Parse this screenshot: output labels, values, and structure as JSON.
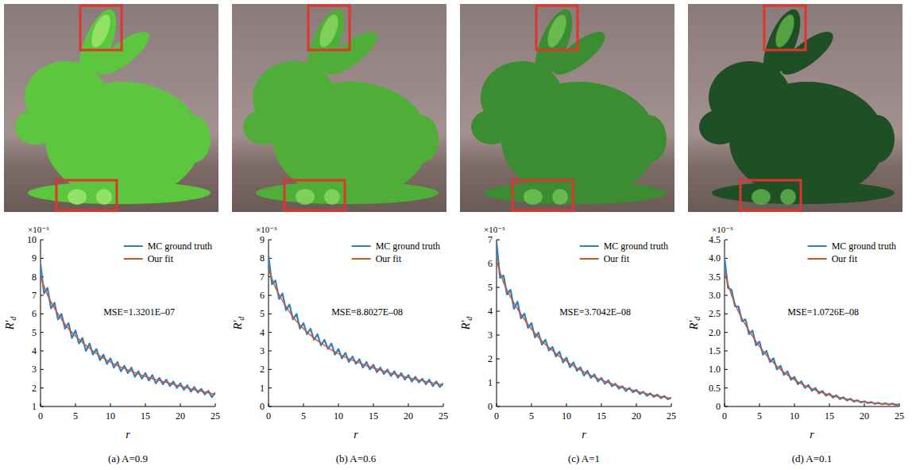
{
  "chart_data": [
    {
      "type": "line",
      "title": "(a) A=0.9",
      "xlabel": "r",
      "ylabel": "R′d",
      "y_scale_label": "×10⁻³",
      "annotations": [
        "MSE=1.3201E–07"
      ],
      "legend": "upper right",
      "xlim": [
        0,
        25
      ],
      "xticks": [
        0,
        5,
        10,
        15,
        20,
        25
      ],
      "ylim": [
        1,
        10
      ],
      "yticks": [
        1,
        2,
        3,
        4,
        5,
        6,
        7,
        8,
        9,
        10
      ],
      "series": [
        {
          "name": "MC ground truth",
          "color": "#2f7fc1",
          "x": [
            0,
            0.5,
            1,
            1.5,
            2,
            2.5,
            3,
            3.5,
            4,
            4.5,
            5,
            5.5,
            6,
            6.5,
            7,
            7.5,
            8,
            8.5,
            9,
            9.5,
            10,
            10.5,
            11,
            11.5,
            12,
            12.5,
            13,
            13.5,
            14,
            14.5,
            15,
            15.5,
            16,
            16.5,
            17,
            17.5,
            18,
            18.5,
            19,
            19.5,
            20,
            20.5,
            21,
            21.5,
            22,
            22.5,
            23,
            23.5,
            24,
            24.5,
            25
          ],
          "values": [
            8.7,
            7.1,
            7.4,
            6.3,
            6.6,
            5.7,
            6.0,
            5.2,
            5.5,
            4.7,
            5.1,
            4.4,
            4.7,
            4.0,
            4.4,
            3.8,
            4.1,
            3.5,
            3.8,
            3.3,
            3.6,
            3.1,
            3.4,
            2.9,
            3.2,
            2.8,
            3.1,
            2.6,
            2.9,
            2.5,
            2.8,
            2.4,
            2.7,
            2.25,
            2.55,
            2.2,
            2.45,
            2.1,
            2.35,
            2.0,
            2.25,
            1.9,
            2.15,
            1.8,
            2.05,
            1.75,
            1.95,
            1.65,
            1.85,
            1.5,
            1.75
          ]
        },
        {
          "name": "Our fit",
          "color": "#d9531e",
          "x": [
            0,
            1,
            2,
            3,
            4,
            5,
            6,
            7,
            8,
            9,
            10,
            11,
            12,
            13,
            14,
            15,
            16,
            17,
            18,
            19,
            20,
            21,
            22,
            23,
            24,
            25
          ],
          "values": [
            8.0,
            7.0,
            6.3,
            5.7,
            5.2,
            4.8,
            4.45,
            4.15,
            3.85,
            3.6,
            3.4,
            3.2,
            3.05,
            2.9,
            2.75,
            2.62,
            2.5,
            2.4,
            2.3,
            2.2,
            2.1,
            2.0,
            1.9,
            1.82,
            1.74,
            1.65
          ]
        }
      ]
    },
    {
      "type": "line",
      "title": "(b) A=0.6",
      "xlabel": "r",
      "ylabel": "R′d",
      "y_scale_label": "×10⁻³",
      "annotations": [
        "MSE=8.8027E–08"
      ],
      "legend": "upper right",
      "xlim": [
        0,
        25
      ],
      "xticks": [
        0,
        5,
        10,
        15,
        20,
        25
      ],
      "ylim": [
        0,
        9
      ],
      "yticks": [
        0,
        1,
        2,
        3,
        4,
        5,
        6,
        7,
        8,
        9
      ],
      "series": [
        {
          "name": "MC ground truth",
          "color": "#2f7fc1",
          "x": [
            0,
            0.5,
            1,
            1.5,
            2,
            2.5,
            3,
            3.5,
            4,
            4.5,
            5,
            5.5,
            6,
            6.5,
            7,
            7.5,
            8,
            8.5,
            9,
            9.5,
            10,
            10.5,
            11,
            11.5,
            12,
            12.5,
            13,
            13.5,
            14,
            14.5,
            15,
            15.5,
            16,
            16.5,
            17,
            17.5,
            18,
            18.5,
            19,
            19.5,
            20,
            20.5,
            21,
            21.5,
            22,
            22.5,
            23,
            23.5,
            24,
            24.5,
            25
          ],
          "values": [
            8.1,
            6.6,
            6.8,
            5.8,
            6.1,
            5.2,
            5.5,
            4.7,
            5.0,
            4.2,
            4.5,
            3.9,
            4.2,
            3.6,
            3.9,
            3.3,
            3.6,
            3.1,
            3.4,
            2.8,
            3.1,
            2.6,
            2.9,
            2.4,
            2.7,
            2.3,
            2.55,
            2.1,
            2.4,
            2.0,
            2.25,
            1.85,
            2.1,
            1.75,
            2.0,
            1.65,
            1.9,
            1.55,
            1.8,
            1.45,
            1.7,
            1.35,
            1.6,
            1.3,
            1.5,
            1.2,
            1.45,
            1.1,
            1.35,
            1.05,
            1.25
          ]
        },
        {
          "name": "Our fit",
          "color": "#d9531e",
          "x": [
            0,
            1,
            2,
            3,
            4,
            5,
            6,
            7,
            8,
            9,
            10,
            11,
            12,
            13,
            14,
            15,
            16,
            17,
            18,
            19,
            20,
            21,
            22,
            23,
            24,
            25
          ],
          "values": [
            7.4,
            6.4,
            5.7,
            5.1,
            4.6,
            4.2,
            3.85,
            3.55,
            3.3,
            3.05,
            2.85,
            2.65,
            2.5,
            2.35,
            2.2,
            2.08,
            1.96,
            1.85,
            1.75,
            1.65,
            1.56,
            1.47,
            1.39,
            1.31,
            1.24,
            1.17
          ]
        }
      ]
    },
    {
      "type": "line",
      "title": "(c) A=1",
      "xlabel": "r",
      "ylabel": "R′d",
      "y_scale_label": "×10⁻³",
      "annotations": [
        "MSE=3.7042E–08"
      ],
      "legend": "upper right",
      "xlim": [
        0,
        25
      ],
      "xticks": [
        0,
        5,
        10,
        15,
        20,
        25
      ],
      "ylim": [
        0,
        7
      ],
      "yticks": [
        0,
        1,
        2,
        3,
        4,
        5,
        6,
        7
      ],
      "series": [
        {
          "name": "MC ground truth",
          "color": "#2f7fc1",
          "x": [
            0,
            0.5,
            1,
            1.5,
            2,
            2.5,
            3,
            3.5,
            4,
            4.5,
            5,
            5.5,
            6,
            6.5,
            7,
            7.5,
            8,
            8.5,
            9,
            9.5,
            10,
            10.5,
            11,
            11.5,
            12,
            12.5,
            13,
            13.5,
            14,
            14.5,
            15,
            15.5,
            16,
            16.5,
            17,
            17.5,
            18,
            18.5,
            19,
            19.5,
            20,
            20.5,
            21,
            21.5,
            22,
            22.5,
            23,
            23.5,
            24,
            24.5,
            25
          ],
          "values": [
            6.9,
            5.4,
            5.5,
            4.7,
            4.9,
            4.1,
            4.4,
            3.7,
            3.9,
            3.3,
            3.5,
            2.9,
            3.1,
            2.6,
            2.8,
            2.35,
            2.5,
            2.1,
            2.3,
            1.85,
            2.05,
            1.65,
            1.85,
            1.5,
            1.65,
            1.3,
            1.5,
            1.2,
            1.35,
            1.05,
            1.2,
            0.95,
            1.1,
            0.85,
            0.95,
            0.75,
            0.85,
            0.65,
            0.78,
            0.6,
            0.7,
            0.52,
            0.62,
            0.45,
            0.55,
            0.4,
            0.5,
            0.35,
            0.44,
            0.3,
            0.37
          ]
        },
        {
          "name": "Our fit",
          "color": "#d9531e",
          "x": [
            0,
            1,
            2,
            3,
            4,
            5,
            6,
            7,
            8,
            9,
            10,
            11,
            12,
            13,
            14,
            15,
            16,
            17,
            18,
            19,
            20,
            21,
            22,
            23,
            24,
            25
          ],
          "values": [
            6.1,
            5.2,
            4.6,
            4.1,
            3.65,
            3.25,
            2.9,
            2.6,
            2.35,
            2.1,
            1.9,
            1.7,
            1.53,
            1.38,
            1.24,
            1.11,
            1.0,
            0.9,
            0.8,
            0.72,
            0.64,
            0.57,
            0.5,
            0.44,
            0.39,
            0.34
          ]
        }
      ]
    },
    {
      "type": "line",
      "title": "(d) A=0.1",
      "xlabel": "r",
      "ylabel": "R′d",
      "y_scale_label": "×10⁻³",
      "annotations": [
        "MSE=1.0726E–08"
      ],
      "legend": "upper right",
      "xlim": [
        0,
        25
      ],
      "xticks": [
        0,
        5,
        10,
        15,
        20,
        25
      ],
      "ylim": [
        0,
        4.5
      ],
      "yticks": [
        0,
        0.5,
        {
          "value": 1,
          "label": "1.0"
        },
        1.5,
        {
          "value": 2,
          "label": "2.0"
        },
        2.5,
        {
          "value": 3,
          "label": "3.0"
        },
        3.5,
        {
          "value": 4,
          "label": "4.0"
        },
        4.5
      ],
      "series": [
        {
          "name": "MC ground truth",
          "color": "#2f7fc1",
          "x": [
            0,
            0.5,
            1,
            1.5,
            2,
            2.5,
            3,
            3.5,
            4,
            4.5,
            5,
            5.5,
            6,
            6.5,
            7,
            7.5,
            8,
            8.5,
            9,
            9.5,
            10,
            10.5,
            11,
            11.5,
            12,
            12.5,
            13,
            13.5,
            14,
            14.5,
            15,
            15.5,
            16,
            16.5,
            17,
            17.5,
            18,
            18.5,
            19,
            19.5,
            20,
            20.5,
            21,
            21.5,
            22,
            22.5,
            23,
            23.5,
            24,
            24.5,
            25
          ],
          "values": [
            4.0,
            3.2,
            3.15,
            2.7,
            2.7,
            2.3,
            2.35,
            1.95,
            2.05,
            1.65,
            1.75,
            1.4,
            1.5,
            1.2,
            1.3,
            1.0,
            1.1,
            0.85,
            0.95,
            0.72,
            0.8,
            0.6,
            0.68,
            0.5,
            0.58,
            0.42,
            0.5,
            0.35,
            0.42,
            0.29,
            0.35,
            0.24,
            0.3,
            0.2,
            0.25,
            0.16,
            0.21,
            0.13,
            0.17,
            0.11,
            0.14,
            0.09,
            0.12,
            0.07,
            0.1,
            0.06,
            0.09,
            0.05,
            0.08,
            0.04,
            0.06
          ]
        },
        {
          "name": "Our fit",
          "color": "#d9531e",
          "x": [
            0,
            1,
            2,
            3,
            4,
            5,
            6,
            7,
            8,
            9,
            10,
            11,
            12,
            13,
            14,
            15,
            16,
            17,
            18,
            19,
            20,
            21,
            22,
            23,
            24,
            25
          ],
          "values": [
            3.6,
            3.0,
            2.55,
            2.2,
            1.9,
            1.62,
            1.38,
            1.18,
            1.0,
            0.85,
            0.72,
            0.61,
            0.52,
            0.44,
            0.37,
            0.31,
            0.26,
            0.22,
            0.18,
            0.15,
            0.12,
            0.1,
            0.08,
            0.07,
            0.06,
            0.05
          ]
        }
      ]
    }
  ]
}
